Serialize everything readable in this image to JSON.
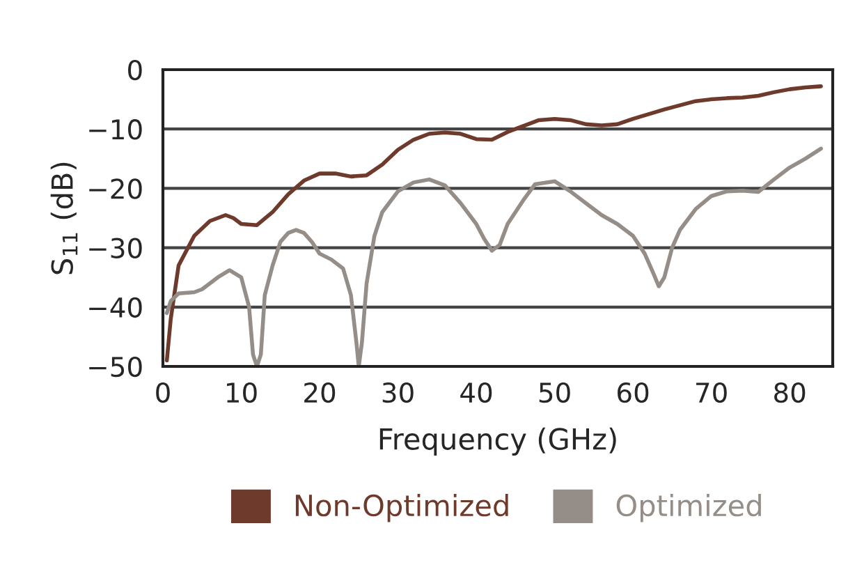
{
  "chart_data": {
    "type": "line",
    "xlabel": "Frequency (GHz)",
    "ylabel": "S$_{11}$ (dB)",
    "xlim": [
      0,
      85.5
    ],
    "xticks": [
      0,
      10,
      20,
      30,
      40,
      50,
      60,
      70,
      80
    ],
    "ylim": [
      -50,
      0
    ],
    "yticks": [
      {
        "value": -50,
        "label": "−50"
      },
      {
        "value": -40,
        "label": "−40"
      },
      {
        "value": -30,
        "label": "−30"
      },
      {
        "value": -20,
        "label": "−20"
      },
      {
        "value": -10,
        "label": "−10"
      },
      0
    ],
    "grid": "y",
    "legend": "bottom",
    "marker": "none",
    "line_style": "solid",
    "series": [
      {
        "name": "Non-Optimized",
        "color": "#6e3a2c",
        "x": [
          0.5,
          1,
          2,
          4,
          6,
          8,
          9,
          10,
          12,
          14,
          16,
          18,
          20,
          22,
          24,
          26,
          28,
          30,
          32,
          34,
          36,
          38,
          40,
          42,
          44,
          46,
          48,
          50,
          52,
          54,
          56,
          58,
          60,
          62,
          64,
          66,
          68,
          70,
          72,
          74,
          76,
          78,
          80,
          82,
          84
        ],
        "values": [
          -49,
          -42,
          -33,
          -28,
          -25.5,
          -24.5,
          -25,
          -26,
          -26.2,
          -24,
          -21,
          -18.7,
          -17.5,
          -17.5,
          -18,
          -17.8,
          -16,
          -13.5,
          -11.8,
          -10.8,
          -10.6,
          -10.8,
          -11.7,
          -11.8,
          -10.5,
          -9.5,
          -8.5,
          -8.3,
          -8.5,
          -9.2,
          -9.4,
          -9.2,
          -8.3,
          -7.5,
          -6.7,
          -6,
          -5.3,
          -5,
          -4.8,
          -4.7,
          -4.4,
          -3.8,
          -3.3,
          -3,
          -2.8
        ]
      },
      {
        "name": "Optimized",
        "color": "#958d87",
        "x": [
          0.5,
          1,
          2,
          4,
          5,
          7,
          8.5,
          10,
          11,
          11.5,
          12,
          12.5,
          13,
          14,
          15,
          16,
          17,
          18,
          19,
          20,
          21.5,
          23,
          24,
          24.7,
          25,
          25.4,
          26,
          27,
          28,
          30,
          32,
          34,
          36,
          38,
          40,
          41,
          42,
          43,
          44,
          46,
          47.5,
          50,
          52,
          54,
          56,
          58,
          60,
          61.5,
          62.5,
          63.3,
          64,
          65,
          66,
          68,
          70,
          72,
          74,
          76,
          78,
          80,
          82,
          84
        ],
        "values": [
          -41,
          -39,
          -37.7,
          -37.5,
          -37,
          -35,
          -33.8,
          -35,
          -40,
          -48,
          -50,
          -48,
          -38,
          -33,
          -29,
          -27.5,
          -27,
          -27.5,
          -29,
          -31,
          -32,
          -33.5,
          -38,
          -46,
          -50,
          -46,
          -36,
          -28,
          -24,
          -20.5,
          -19,
          -18.5,
          -19.5,
          -22.5,
          -26,
          -28.5,
          -30.5,
          -29.5,
          -26,
          -22,
          -19.3,
          -18.8,
          -20.5,
          -22.5,
          -24.5,
          -26,
          -28,
          -31,
          -34,
          -36.5,
          -35,
          -30,
          -27,
          -23.5,
          -21.3,
          -20.5,
          -20.4,
          -20.6,
          -18.5,
          -16.5,
          -15,
          -13.3
        ]
      }
    ]
  }
}
